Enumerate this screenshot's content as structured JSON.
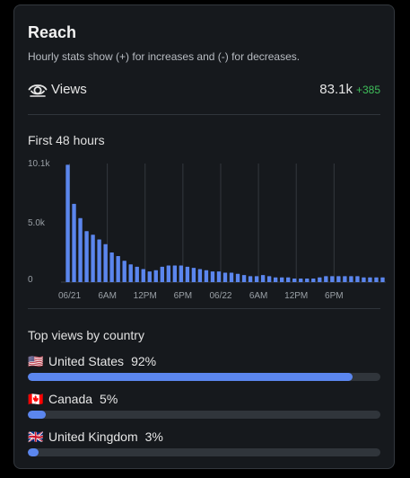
{
  "header": {
    "title": "Reach",
    "subtitle": "Hourly stats show (+) for increases and (-) for decreases."
  },
  "views": {
    "label": "Views",
    "value": "83.1k",
    "delta": "+385",
    "delta_color": "#3fbf5a",
    "icon": "eye-icon"
  },
  "chart_section": {
    "title": "First 48 hours"
  },
  "chart_data": {
    "type": "bar",
    "title": "First 48 hours",
    "ylim": [
      0,
      10000
    ],
    "yticks": [
      "10.1k",
      "5.0k",
      "0"
    ],
    "xticks": [
      "06/21",
      "6AM",
      "12PM",
      "6PM",
      "06/22",
      "6AM",
      "12PM",
      "6PM"
    ],
    "grid": "vertical",
    "bar_color": "#5b86ee",
    "values": [
      9900,
      6600,
      5400,
      4300,
      4000,
      3600,
      3200,
      2500,
      2200,
      1800,
      1500,
      1300,
      1100,
      900,
      1000,
      1300,
      1400,
      1400,
      1400,
      1300,
      1200,
      1100,
      1000,
      900,
      900,
      800,
      800,
      700,
      600,
      500,
      500,
      600,
      500,
      400,
      400,
      400,
      300,
      300,
      300,
      300,
      400,
      500,
      500,
      500,
      500,
      500,
      500,
      400,
      400,
      400,
      400
    ]
  },
  "countries_section": {
    "title": "Top views by country",
    "items": [
      {
        "flag": "🇺🇸",
        "name": "United States",
        "percent_label": "92%",
        "percent": 92
      },
      {
        "flag": "🇨🇦",
        "name": "Canada",
        "percent_label": "5%",
        "percent": 5
      },
      {
        "flag": "🇬🇧",
        "name": "United Kingdom",
        "percent_label": "3%",
        "percent": 3
      }
    ]
  }
}
